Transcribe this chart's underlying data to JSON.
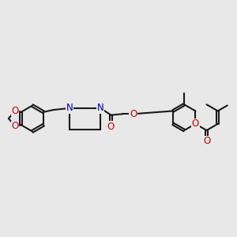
{
  "bg": "#e8e8e8",
  "bc": "#1a1a1a",
  "nc": "#0000cc",
  "oc": "#cc0000",
  "lw": 1.5,
  "dbo": 0.055,
  "fs": 8.5,
  "xlim": [
    0,
    11
  ],
  "ylim": [
    3.5,
    7.5
  ],
  "figsize": [
    3.0,
    3.0
  ],
  "dpi": 100
}
